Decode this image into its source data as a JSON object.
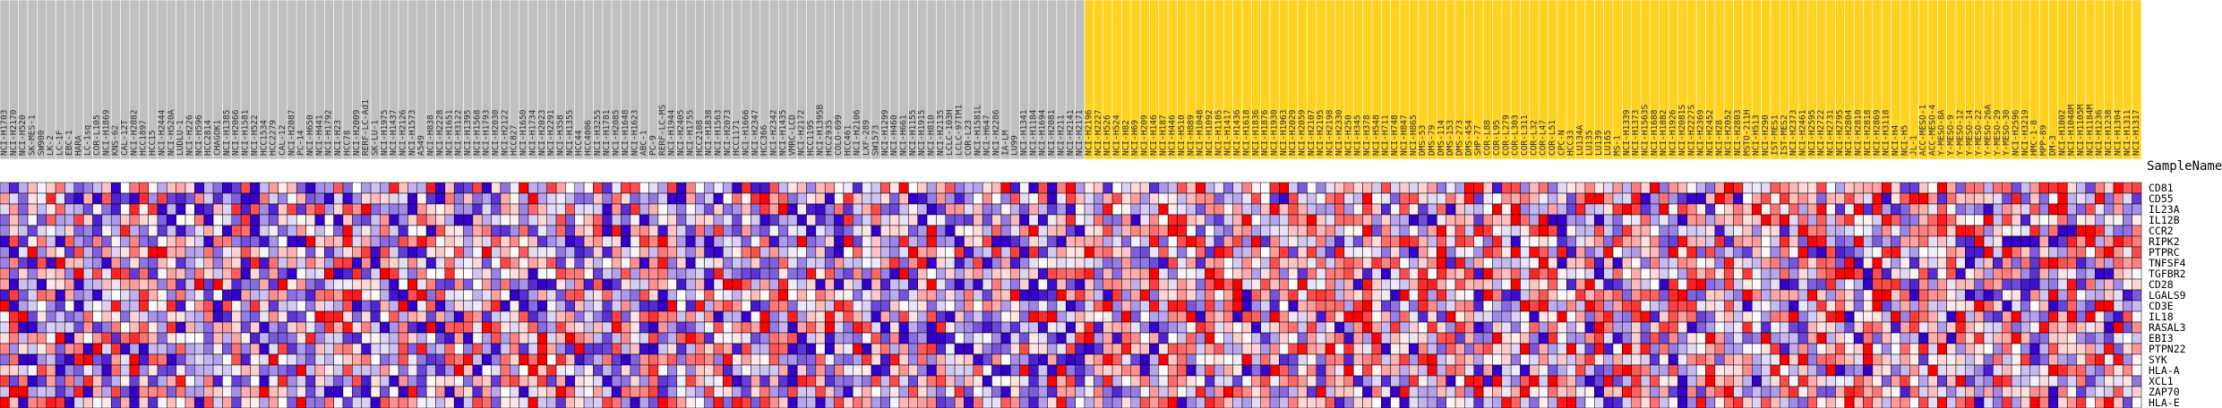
{
  "chart_data": {
    "type": "heatmap",
    "title": "",
    "header_label": "SampleName",
    "group_colors": {
      "group_a": "#c0c0c0",
      "group_b": "#ffd21f"
    },
    "scale_colors": {
      "low": "#3300cc",
      "mid": "#ffffff",
      "high": "#ff0000"
    },
    "value_range": [
      -2,
      2
    ],
    "genes": [
      "CD81",
      "CD55",
      "IL23A",
      "IL12B",
      "CCR2",
      "RIPK2",
      "PTPRC",
      "TNFSF4",
      "TGFBR2",
      "CD28",
      "LGALS9",
      "CD3E",
      "IL18",
      "RASAL3",
      "EBI3",
      "PTPN22",
      "SYK",
      "HLA-A",
      "XCL1",
      "ZAP70",
      "HLA-E"
    ],
    "samples": [
      "NCI-H1703",
      "NCI-H2170",
      "NCI-H520",
      "SK-MES-1",
      "SW900",
      "LK-2",
      "LC-1F",
      "EBC-1",
      "HARA",
      "LC-1sq",
      "COR-L105",
      "NCI-H1869",
      "KNS-62",
      "CAL-12T",
      "NCI-H2882",
      "HCC1897",
      "HCC15",
      "NCI-H2444",
      "NCI-H520A",
      "LUDLU-1",
      "NCI-H226",
      "NCI-H596",
      "HCC2814",
      "CHAGOK1",
      "NCI-H1385",
      "NCI-H2066",
      "NCI-H1581",
      "NCI-H522",
      "HCC1534",
      "HCC2279",
      "CAL-12",
      "NCI-H2087",
      "PC-14",
      "NCI-H650",
      "NCI-H441",
      "NCI-H1792",
      "NCI-H23",
      "HCC78",
      "NCI-H2009",
      "RERF-LC-Ad1",
      "SK-LU-1",
      "NCI-H1975",
      "NCI-H1437",
      "NCI-H2126",
      "NCI-H1573",
      "A549",
      "NCI-H838",
      "NCI-H2228",
      "NCI-H1651",
      "NCI-H3122",
      "NCI-H1395",
      "NCI-H1568",
      "NCI-H1793",
      "NCI-H2030",
      "NCI-H2122",
      "HCC827",
      "NCI-H1650",
      "NCI-H1734",
      "NCI-H2023",
      "NCI-H2291",
      "NCI-H358",
      "NCI-H1355",
      "HCC44",
      "HCC4006",
      "NCI-H3255",
      "NCI-H1781",
      "NCI-H2085",
      "NCI-H1648",
      "NCI-H1623",
      "ABC-1",
      "PC-9",
      "RERF-LC-MS",
      "NCI-H1944",
      "NCI-H2405",
      "NCI-H1755",
      "HCC2108",
      "NCI-H1838",
      "NCI-H1563",
      "NCI-H2073",
      "HCC1171",
      "NCI-H1666",
      "NCI-H2347",
      "HCC366",
      "NCI-H2342",
      "NCI-H1435",
      "VMRC-LCD",
      "NCI-H2172",
      "HCC1195",
      "NCI-H1395B",
      "HCC2935",
      "COLO-699",
      "HCC461",
      "NCI-H2106",
      "LXF-289",
      "SW1573",
      "NCI-H1299",
      "NCI-H460",
      "NCI-H661",
      "NCI-H1155",
      "NCI-H1915",
      "NCI-H810",
      "NCI-H2135",
      "LCLC-103H",
      "LCLC-97TM1",
      "COR-L23",
      "NCI-H1581L",
      "NCI-H647",
      "NCI-H2286",
      "IA-LM",
      "LU99",
      "NCI-H1341",
      "NCI-H1184",
      "NCI-H1694",
      "NCI-H2081",
      "NCI-H211",
      "NCI-H2141",
      "NCI-H2171",
      "NCI-H2196",
      "NCI-H2227",
      "NCI-H526",
      "NCI-H524",
      "NCI-H82",
      "NCI-H69",
      "NCI-H209",
      "NCI-H146",
      "NCI-H187",
      "NCI-H446",
      "NCI-H510",
      "NCI-H889",
      "NCI-H1048",
      "NCI-H1092",
      "NCI-H1105",
      "NCI-H1417",
      "NCI-H1436",
      "NCI-H1618",
      "NCI-H1836",
      "NCI-H1876",
      "NCI-H1930",
      "NCI-H1963",
      "NCI-H2029",
      "NCI-H2059",
      "NCI-H2107",
      "NCI-H2195",
      "NCI-H2198",
      "NCI-H2330",
      "NCI-H250",
      "NCI-H345",
      "NCI-H378",
      "NCI-H548",
      "NCI-H711",
      "NCI-H748",
      "NCI-H847",
      "NCI-H865",
      "DMS-53",
      "DMS-79",
      "DMS-114",
      "DMS-153",
      "DMS-273",
      "DMS-454",
      "SHP-77",
      "COR-L88",
      "COR-L95",
      "COR-L279",
      "COR-L303",
      "COR-L311",
      "COR-L32",
      "COR-L47",
      "COR-L51",
      "CPC-N",
      "HCC33",
      "LU134A",
      "LU135",
      "LU139",
      "LU165",
      "MS-1",
      "NCI-H1339",
      "NCI-H1373",
      "NCI-H1563S",
      "NCI-H1688",
      "NCI-H1882",
      "NCI-H1926",
      "NCI-H2081S",
      "NCI-H2227S",
      "NCI-H2369",
      "NCI-H2452",
      "NCI-H28",
      "NCI-H2052",
      "NCI-H2803",
      "MSTO-211H",
      "NCI-H513",
      "NCI-H290",
      "IST-MES1",
      "IST-MES2",
      "NCI-H2373",
      "NCI-H2461",
      "NCI-H2595",
      "NCI-H2722",
      "NCI-H2731",
      "NCI-H2795",
      "NCI-H2804",
      "NCI-H2810",
      "NCI-H2818",
      "NCI-H2869",
      "NCI-H3118",
      "NCI-H4",
      "NCI-H5",
      "JL-1",
      "ACC-MESO-1",
      "ACC-MESO-4",
      "Y-MESO-8A",
      "Y-MESO-9",
      "Y-MESO-12",
      "Y-MESO-14",
      "Y-MESO-22",
      "Y-MESO-26A",
      "Y-MESO-29",
      "Y-MESO-30",
      "NCI-H2596",
      "NCI-H3219",
      "HMC-1-8",
      "MPP-89",
      "DM-3",
      "NCI-H1002",
      "NCI-H1048M",
      "NCI-H1105M",
      "NCI-H1184M",
      "NCI-H1236",
      "NCI-H1238",
      "NCI-H1304",
      "NCI-H1311",
      "NCI-H1317"
    ],
    "group_b_start": 117,
    "value_seed": 20230517,
    "legend": "none",
    "grid": true
  }
}
